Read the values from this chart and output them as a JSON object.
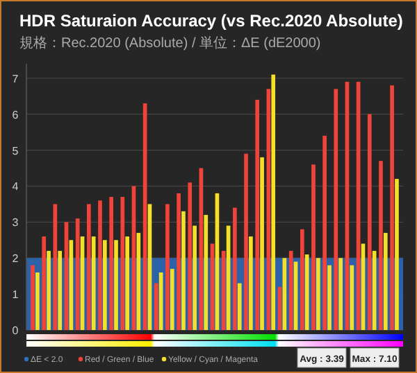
{
  "chart_data": {
    "type": "bar",
    "title": "HDR Saturaion Accuracy (vs Rec.2020 Absolute)",
    "subtitle": "規格：Rec.2020 (Absolute) / 単位：ΔE (dE2000)",
    "categories": [
      null,
      null,
      null,
      null,
      null,
      null,
      null,
      null,
      null,
      null,
      null,
      null,
      null,
      null,
      null,
      null,
      null,
      null,
      null,
      null,
      null,
      null,
      null,
      null,
      null,
      null,
      null,
      null,
      null,
      null,
      null,
      null,
      null
    ],
    "series": [
      {
        "name": "Red / Green / Blue",
        "color": "#f0443a",
        "values": [
          1.8,
          2.6,
          3.5,
          3.0,
          3.1,
          3.5,
          3.6,
          3.7,
          3.7,
          4.0,
          6.3,
          1.3,
          3.5,
          3.8,
          4.1,
          4.5,
          2.4,
          2.2,
          3.4,
          4.9,
          6.4,
          6.7,
          1.2,
          2.2,
          2.8,
          4.6,
          5.4,
          6.7,
          6.9,
          6.9,
          6.0,
          4.7,
          6.8
        ]
      },
      {
        "name": "Yellow / Cyan / Magenta",
        "color": "#f2e02a",
        "values": [
          1.6,
          2.2,
          2.2,
          2.5,
          2.6,
          2.6,
          2.5,
          2.5,
          2.6,
          2.7,
          3.5,
          1.6,
          1.7,
          3.3,
          2.9,
          3.2,
          3.8,
          2.9,
          1.3,
          2.6,
          4.8,
          7.1,
          2.0,
          1.9,
          2.1,
          2.0,
          1.8,
          2.0,
          1.8,
          2.4,
          2.2,
          2.7,
          4.2
        ]
      }
    ],
    "ylim": [
      0,
      7.4
    ],
    "yticks": [
      0,
      1,
      2,
      3,
      4,
      5,
      6,
      7
    ],
    "grid": "y",
    "legend": "bottom",
    "bands": [
      {
        "axis": "y",
        "from": 0,
        "to": 2,
        "label": "ΔE < 2.0",
        "color": "#2e6fc0"
      }
    ],
    "annotations": [
      "Avg : 3.39",
      "Max : 7.10"
    ]
  }
}
